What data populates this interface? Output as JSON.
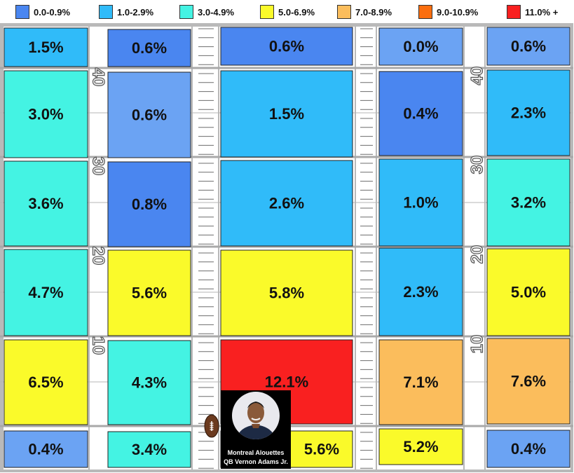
{
  "chart_data": {
    "type": "heatmap",
    "legend": [
      {
        "label": "0.0-0.9%",
        "color": "#4a86f0"
      },
      {
        "label": "1.0-2.9%",
        "color": "#30bbf9"
      },
      {
        "label": "3.0-4.9%",
        "color": "#44f3e3"
      },
      {
        "label": "5.0-6.9%",
        "color": "#fafa2a"
      },
      {
        "label": "7.0-8.9%",
        "color": "#fbbd5c"
      },
      {
        "label": "9.0-10.9%",
        "color": "#fb6e0f"
      },
      {
        "label": "11.0% +",
        "color": "#f92020"
      }
    ],
    "yard_labels": [
      "40",
      "30",
      "20",
      "10"
    ],
    "rows": [
      {
        "values": [
          "1.5%",
          "0.6%",
          "0.6%",
          "0.0%",
          "0.6%"
        ],
        "colors": [
          "#30bbf9",
          "#4a86f0",
          "#4a86f0",
          "#6ba3f3",
          "#6ba3f3"
        ]
      },
      {
        "values": [
          "3.0%",
          "0.6%",
          "1.5%",
          "0.4%",
          "2.3%"
        ],
        "colors": [
          "#44f3e3",
          "#6ba3f3",
          "#30bbf9",
          "#4a86f0",
          "#30bbf9"
        ]
      },
      {
        "values": [
          "3.6%",
          "0.8%",
          "2.6%",
          "1.0%",
          "3.2%"
        ],
        "colors": [
          "#44f3e3",
          "#4a86f0",
          "#30bbf9",
          "#30bbf9",
          "#44f3e3"
        ]
      },
      {
        "values": [
          "4.7%",
          "5.6%",
          "5.8%",
          "2.3%",
          "5.0%"
        ],
        "colors": [
          "#44f3e3",
          "#fafa2a",
          "#fafa2a",
          "#30bbf9",
          "#fafa2a"
        ]
      },
      {
        "values": [
          "6.5%",
          "4.3%",
          "12.1%",
          "7.1%",
          "7.6%"
        ],
        "colors": [
          "#fafa2a",
          "#44f3e3",
          "#f92020",
          "#fbbd5c",
          "#fbbd5c"
        ]
      },
      {
        "values": [
          "0.4%",
          "3.4%",
          "5.6%",
          "5.2%",
          "0.4%"
        ],
        "colors": [
          "#6ba3f3",
          "#44f3e3",
          "#fafa2a",
          "#fafa2a",
          "#6ba3f3"
        ]
      }
    ]
  },
  "player": {
    "team": "Montreal Alouettes",
    "name": "QB Vernon Adams Jr.",
    "photo_icon": "player-headshot-icon"
  }
}
